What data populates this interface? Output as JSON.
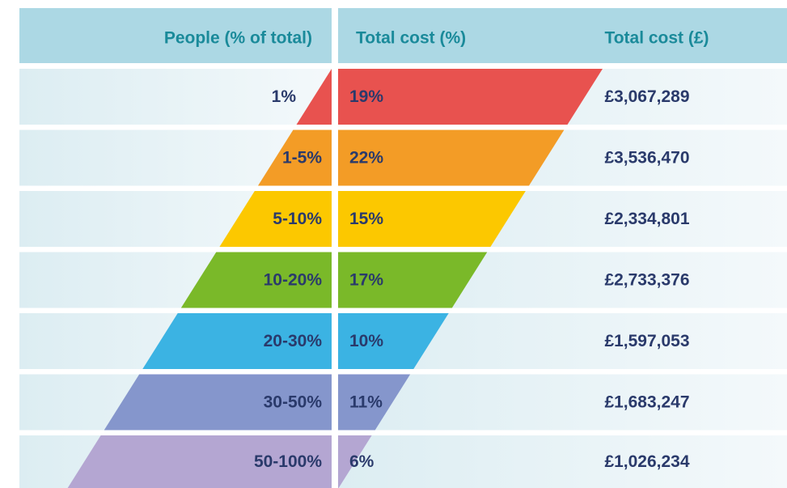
{
  "table": {
    "headers": [
      "People (% of total)",
      "Total cost (%)",
      "Total cost (£)"
    ],
    "rows": [
      {
        "people": "1%",
        "cost_pct": "19%",
        "cost_gbp": "£3,067,289",
        "color": "#e8524f"
      },
      {
        "people": "1-5%",
        "cost_pct": "22%",
        "cost_gbp": "£3,536,470",
        "color": "#f39c26"
      },
      {
        "people": "5-10%",
        "cost_pct": "15%",
        "cost_gbp": "£2,334,801",
        "color": "#fcc800"
      },
      {
        "people": "10-20%",
        "cost_pct": "17%",
        "cost_gbp": "£2,733,376",
        "color": "#7ab929"
      },
      {
        "people": "20-30%",
        "cost_pct": "10%",
        "cost_gbp": "£1,597,053",
        "color": "#3bb3e3"
      },
      {
        "people": "30-50%",
        "cost_pct": "11%",
        "cost_gbp": "£1,683,247",
        "color": "#8596cc"
      },
      {
        "people": "50-100%",
        "cost_pct": "6%",
        "cost_gbp": "£1,026,234",
        "color": "#b4a6d2"
      }
    ]
  }
}
